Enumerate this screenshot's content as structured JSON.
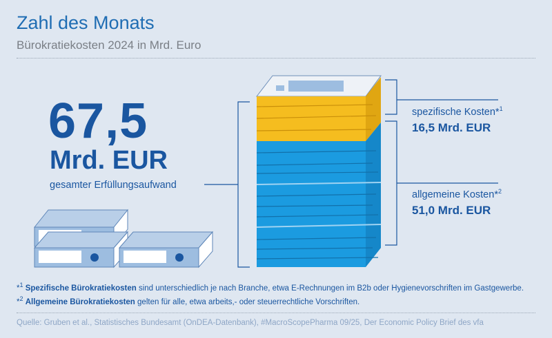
{
  "header": {
    "title": "Zahl des Monats",
    "subtitle": "Bürokratiekosten 2024 in Mrd. Euro"
  },
  "total": {
    "value": "67,5",
    "unit": "Mrd. EUR",
    "label": "gesamter Erfüllungsaufwand"
  },
  "segments": [
    {
      "label": "spezifische Kosten",
      "mark": "*",
      "sup": "1",
      "amount": "16,5 Mrd. EUR"
    },
    {
      "label": "allgemeine Kosten",
      "mark": "*",
      "sup": "2",
      "amount": "51,0 Mrd. EUR"
    }
  ],
  "footnotes": [
    {
      "mark": "*",
      "sup": "1",
      "bold": "Spezifische Bürokratiekosten",
      "text": " sind unterschiedlich je nach Branche, etwa E-Rechnungen im B2b oder Hygienevorschriften im Gastgewerbe."
    },
    {
      "mark": "*",
      "sup": "2",
      "bold": "Allgemeine Bürokratiekosten",
      "text": " gelten für alle, etwa arbeits,- oder steuerrechtliche Vorschriften."
    }
  ],
  "source": "Quelle: Gruben et al., Statistisches Bundesamt (OnDEA-Datenbank), #MacroScopePharma 09/25, Der Economic Policy Brief des vfa"
}
